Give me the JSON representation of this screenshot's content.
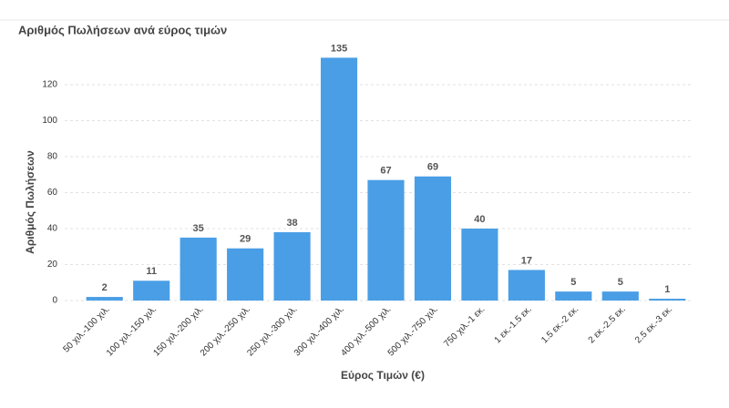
{
  "chart_data": {
    "type": "bar",
    "title": "Αριθμός Πωλήσεων ανά εύρος τιμών",
    "x_label": "Εύρος Τιμών (€)",
    "y_label": "Αριθμός Πωλήσεων",
    "categories": [
      "50 χιλ.-100 χιλ.",
      "100 χιλ.-150 χιλ.",
      "150 χιλ.-200 χιλ.",
      "200 χιλ.-250 χιλ.",
      "250 χιλ.-300 χιλ.",
      "300 χιλ.-400 χιλ.",
      "400 χιλ.-500 χιλ.",
      "500 χιλ.-750 χιλ.",
      "750 χιλ.-1 εκ.",
      "1 εκ.-1.5 εκ.",
      "1.5 εκ.-2 εκ.",
      "2 εκ.-2.5 εκ.",
      "2.5 εκ.-3 εκ."
    ],
    "values": [
      2,
      11,
      35,
      29,
      38,
      135,
      67,
      69,
      40,
      17,
      5,
      5,
      1
    ],
    "color": "#4a9ee6",
    "ylim": [
      0,
      140
    ],
    "yticks": [
      0,
      20,
      40,
      60,
      80,
      100,
      120
    ],
    "grid": true
  }
}
